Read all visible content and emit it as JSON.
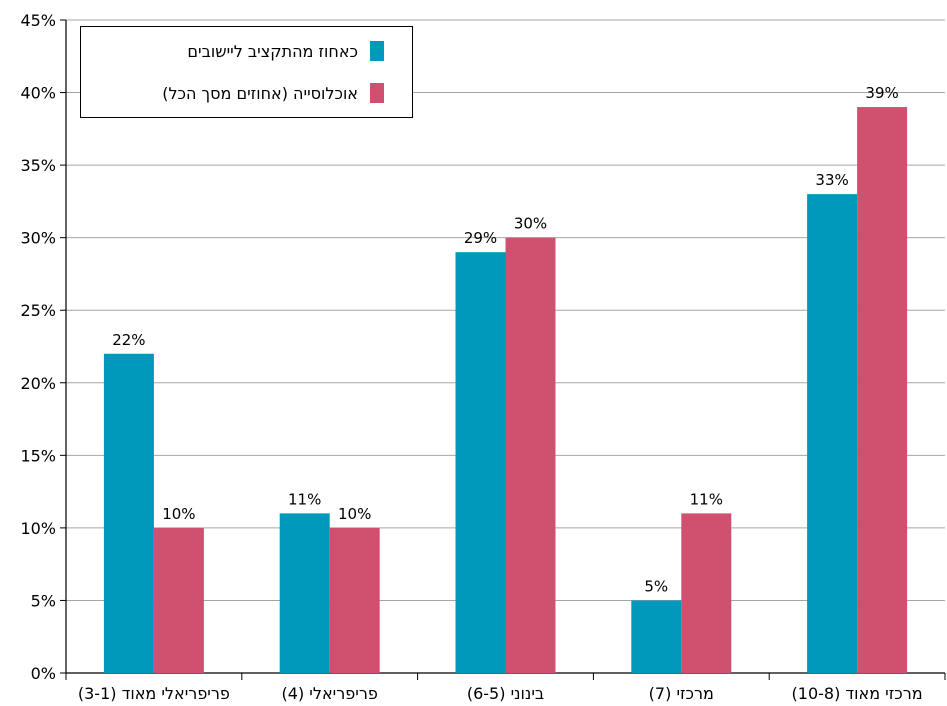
{
  "chart_data": {
    "type": "bar",
    "categories": [
      "פריפריאלי מאוד (3-1)",
      "פריפריאלי (4)",
      "בינוני (6-5)",
      "מרכזי (7)",
      "מרכזי מאוד (10-8)"
    ],
    "series": [
      {
        "name": "כאחוז מהתקציב ליישובים",
        "color": "#0099bb",
        "values": [
          22,
          11,
          29,
          5,
          33
        ]
      },
      {
        "name": "אוכלוסייה (אחוזים מסך הכל)",
        "color": "#d05070",
        "values": [
          10,
          10,
          30,
          11,
          39
        ]
      }
    ],
    "data_labels": [
      [
        "22%",
        "11%",
        "29%",
        "5%",
        "33%"
      ],
      [
        "10%",
        "10%",
        "30%",
        "11%",
        "39%"
      ]
    ],
    "y_ticks": [
      "0%",
      "5%",
      "10%",
      "15%",
      "20%",
      "25%",
      "30%",
      "35%",
      "40%",
      "45%"
    ],
    "ylim": [
      0,
      45
    ],
    "grid": true,
    "legend_position": "top-left",
    "title": "",
    "xlabel": "",
    "ylabel": ""
  }
}
